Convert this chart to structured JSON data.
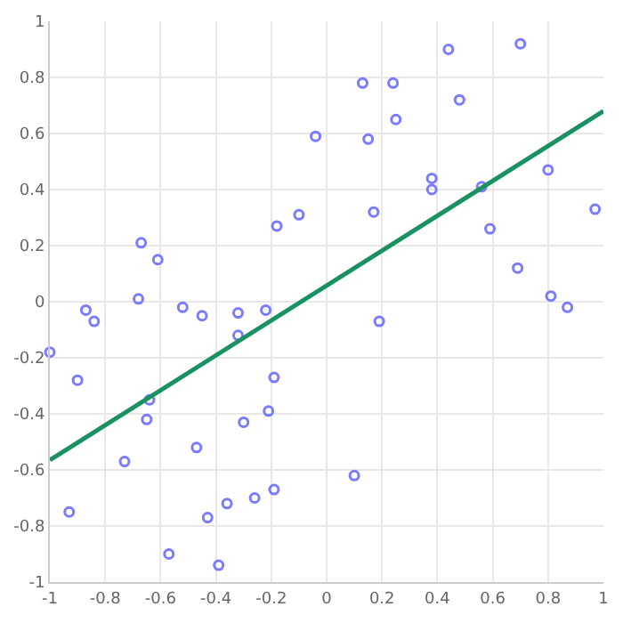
{
  "chart_data": {
    "type": "scatter",
    "marker": "circle",
    "grid": true,
    "xlim": [
      -1,
      1
    ],
    "ylim": [
      -1,
      1
    ],
    "xticks": [
      -1,
      -0.8,
      -0.6,
      -0.4,
      -0.2,
      0,
      0.2,
      0.4,
      0.6,
      0.8,
      1
    ],
    "yticks": [
      -1,
      -0.8,
      -0.6,
      -0.4,
      -0.2,
      0,
      0.2,
      0.4,
      0.6,
      0.8,
      1
    ],
    "series": [
      {
        "color": "#7b7bff",
        "x": [
          -0.87,
          -0.84,
          -0.68,
          -0.67,
          -0.61,
          -0.52,
          -0.45,
          -0.32,
          -0.22,
          -0.18,
          -0.1,
          -0.04,
          0.13,
          0.24,
          0.44,
          0.7,
          0.48,
          0.25,
          0.15,
          0.38,
          0.38,
          0.56,
          0.8,
          0.17,
          0.97,
          0.59,
          0.69,
          0.81,
          0.87,
          0.19,
          -1.0,
          -0.9,
          -0.64,
          -0.65,
          -0.73,
          -0.47,
          -0.93,
          -0.57,
          -0.43,
          -0.39,
          -0.36,
          -0.26,
          -0.32,
          -0.19,
          -0.21,
          -0.3,
          -0.19,
          0.1
        ],
        "values": [
          -0.03,
          -0.07,
          0.01,
          0.21,
          0.15,
          -0.02,
          -0.05,
          -0.04,
          -0.03,
          0.27,
          0.31,
          0.59,
          0.78,
          0.78,
          0.9,
          0.92,
          0.72,
          0.65,
          0.58,
          0.44,
          0.4,
          0.41,
          0.47,
          0.32,
          0.33,
          0.26,
          0.12,
          0.02,
          -0.02,
          -0.07,
          -0.18,
          -0.28,
          -0.35,
          -0.42,
          -0.57,
          -0.52,
          -0.75,
          -0.9,
          -0.77,
          -0.94,
          -0.72,
          -0.7,
          -0.12,
          -0.27,
          -0.39,
          -0.43,
          -0.67,
          -0.62
        ]
      },
      {
        "type": "line",
        "marker": "none",
        "color": "#1a9160",
        "x": [
          -1,
          1
        ],
        "values": [
          -0.565,
          0.68
        ]
      }
    ]
  }
}
